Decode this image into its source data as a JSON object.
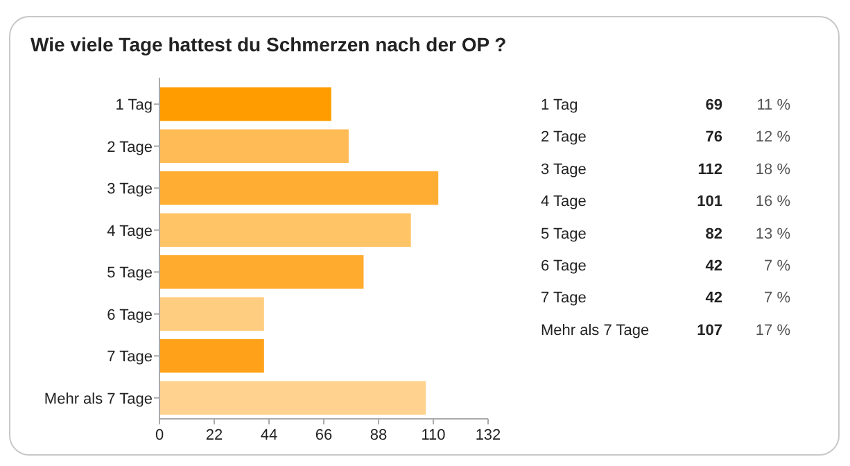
{
  "chart_data": {
    "type": "bar",
    "orientation": "horizontal",
    "title": "Wie viele Tage hattest du Schmerzen nach der OP ?",
    "categories": [
      "1 Tag",
      "2 Tage",
      "3 Tage",
      "4 Tage",
      "5 Tage",
      "6 Tage",
      "7 Tage",
      "Mehr als 7 Tage"
    ],
    "values": [
      69,
      76,
      112,
      101,
      82,
      42,
      42,
      107
    ],
    "colors": [
      "#ff9c00",
      "#ffbb55",
      "#ffad33",
      "#ffc465",
      "#ffab2e",
      "#ffcd80",
      "#ffa21a",
      "#ffd38f"
    ],
    "xlim": [
      0,
      132
    ],
    "xticks": [
      0,
      22,
      44,
      66,
      88,
      110,
      132
    ],
    "grid": false,
    "annotations": [
      "69",
      "11 %",
      "76",
      "12 %",
      "112",
      "18 %",
      "101",
      "16 %",
      "82",
      "13 %",
      "42",
      "7 %",
      "42",
      "7 %",
      "107",
      "17 %"
    ]
  }
}
